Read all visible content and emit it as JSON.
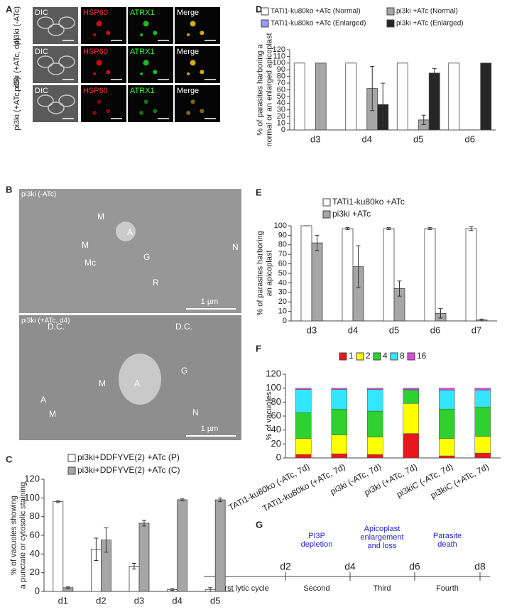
{
  "panel_letters": [
    "A",
    "B",
    "C",
    "D",
    "E",
    "F",
    "G"
  ],
  "panel_a": {
    "rows": [
      "pi3ki (-ATc)",
      "pi3ki (+ATc, d4)",
      "pi3ki (+ATc, d5)"
    ],
    "columns": [
      "DIC",
      "HSP60",
      "ATRX1",
      "Merge"
    ]
  },
  "panel_b": {
    "images": [
      {
        "label": "pi3ki (-ATc)",
        "annotations": [
          "M",
          "A",
          "G",
          "M",
          "Mc",
          "R",
          "N"
        ],
        "scale_bar": "1 µm"
      },
      {
        "label": "pi3ki (+ATc, d4)",
        "annotations": [
          "D.C.",
          "D.C.",
          "G",
          "A",
          "A",
          "M",
          "M",
          "N"
        ],
        "scale_bar": "1 µm"
      }
    ]
  },
  "chart_data": [
    {
      "type": "bar",
      "y_label": [
        "% of vacuoles showing",
        "a punctate or cytosolic staining"
      ],
      "categories": [
        "d1",
        "d2",
        "d3",
        "d4",
        "d5"
      ],
      "series": [
        {
          "name": "pi3ki+DDFYVE(2) +ATc (P)",
          "color": "#ffffff",
          "values": [
            96,
            45,
            27,
            2,
            2
          ],
          "errors": [
            1,
            12,
            3,
            1,
            2
          ]
        },
        {
          "name": "pi3ki+DDFYVE(2) +ATc (C)",
          "color": "#a6a6a6",
          "values": [
            4,
            55,
            73,
            98,
            98
          ],
          "errors": [
            1,
            13,
            3,
            1,
            2
          ]
        }
      ],
      "ylim": [
        0,
        120
      ],
      "yticks": [
        0,
        20,
        40,
        60,
        80,
        100,
        120
      ]
    },
    {
      "type": "bar",
      "y_label": [
        "% of parasites harboring a",
        "normal or an enlarged apicoplast"
      ],
      "categories": [
        "d3",
        "d4",
        "d5",
        "d6"
      ],
      "series": [
        {
          "name": "TATi1-ku80ko +ATc (Normal)",
          "color": "#ffffff",
          "values": [
            100,
            100,
            100,
            100
          ]
        },
        {
          "name": "TATi1-ku80ko +ATc (Enlarged)",
          "color": "#9999ff",
          "values": [
            0,
            0,
            0,
            0
          ]
        },
        {
          "name": "pi3ki +ATc (Normal)",
          "color": "#a6a6a6",
          "values": [
            100,
            62,
            15,
            0
          ],
          "errors": [
            null,
            33,
            7,
            null
          ]
        },
        {
          "name": "pi3ki +ATc (Enlarged)",
          "color": "#262626",
          "values": [
            0,
            38,
            85,
            100
          ],
          "errors": [
            null,
            32,
            7,
            null
          ]
        }
      ],
      "ylim": [
        0,
        120
      ],
      "yticks": [
        0,
        10,
        20,
        30,
        40,
        50,
        60,
        70,
        80,
        90,
        100,
        110,
        120
      ]
    },
    {
      "type": "bar",
      "y_label": [
        "% of parasites harboring",
        "an apicoplast"
      ],
      "categories": [
        "d3",
        "d4",
        "d5",
        "d6",
        "d7"
      ],
      "series": [
        {
          "name": "TATi1-ku80ko +ATc",
          "color": "#ffffff",
          "values": [
            100,
            97,
            97,
            97,
            97
          ],
          "errors": [
            0,
            1,
            1,
            1,
            2
          ]
        },
        {
          "name": "pi3ki +ATc",
          "color": "#a6a6a6",
          "values": [
            82,
            57,
            34,
            8,
            1
          ],
          "errors": [
            8,
            22,
            8,
            5,
            1
          ]
        }
      ],
      "ylim": [
        0,
        100
      ],
      "yticks": [
        0,
        10,
        20,
        30,
        40,
        50,
        60,
        70,
        80,
        90,
        100
      ]
    },
    {
      "type": "stacked_bar",
      "y_label": [
        "% of vacuoles"
      ],
      "categories": [
        "TATi1-ku80ko (-ATc, 7d)",
        "TATi1-ku80ko (+ATc, 7d)",
        "pi3ki (-ATc, 7d)",
        "pi3ki (+ATc, 7d)",
        "pi3kiC (-ATc, 7d)",
        "pi3kiC (+ATc, 7d)"
      ],
      "series": [
        {
          "name": "1",
          "color": "#e8171b",
          "values": [
            5,
            6,
            5,
            35,
            3,
            7
          ]
        },
        {
          "name": "2",
          "color": "#ffff00",
          "values": [
            23,
            27,
            25,
            43,
            25,
            24
          ]
        },
        {
          "name": "4",
          "color": "#2ed12e",
          "values": [
            37,
            37,
            37,
            19,
            42,
            42
          ]
        },
        {
          "name": "8",
          "color": "#33e6ff",
          "values": [
            33,
            28,
            31,
            1,
            27,
            24
          ]
        },
        {
          "name": "16",
          "color": "#d94ed9",
          "values": [
            2,
            2,
            2,
            2,
            3,
            3
          ]
        }
      ],
      "ylim": [
        0,
        120
      ],
      "yticks": [
        0,
        20,
        40,
        60,
        80,
        100,
        120
      ]
    }
  ],
  "panel_g": {
    "days": [
      "d2",
      "d4",
      "d6",
      "d8"
    ],
    "phases": [
      "First lytic cycle",
      "Second",
      "Third",
      "Fourth"
    ],
    "events": [
      [
        "PI3P",
        "depletion"
      ],
      [
        "Apicoplast",
        "enlargement",
        "and loss"
      ],
      [
        "Parasite",
        "death"
      ]
    ]
  }
}
